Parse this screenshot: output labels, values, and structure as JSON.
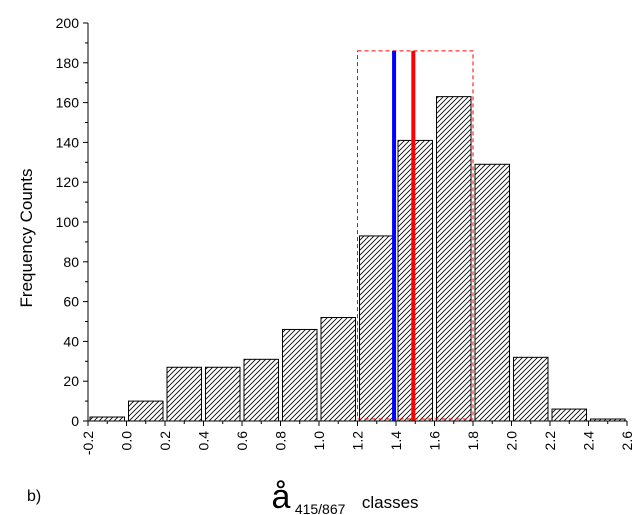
{
  "panel_label": "b)",
  "chart_data": {
    "type": "bar",
    "bin_edges": [
      -0.2,
      0.0,
      0.2,
      0.4,
      0.6,
      0.8,
      1.0,
      1.2,
      1.4,
      1.6,
      1.8,
      2.0,
      2.2,
      2.4,
      2.6
    ],
    "values": [
      2,
      10,
      27,
      27,
      31,
      46,
      52,
      93,
      141,
      163,
      129,
      32,
      6,
      1
    ],
    "x_ticks": [
      "-0.2",
      "0.0",
      "0.2",
      "0.4",
      "0.6",
      "0.8",
      "1.0",
      "1.2",
      "1.4",
      "1.6",
      "1.8",
      "2.0",
      "2.2",
      "2.4",
      "2.6"
    ],
    "y_ticks": [
      "0",
      "20",
      "40",
      "60",
      "80",
      "100",
      "120",
      "140",
      "160",
      "180",
      "200"
    ],
    "xlabel_symbol": "å",
    "xlabel_subscript": "415/867",
    "xlabel_suffix": "classes",
    "ylabel": "Frequency Counts",
    "xlim": [
      -0.2,
      2.6
    ],
    "ylim": [
      0,
      200
    ],
    "grid": false,
    "bar_fill": "diagonal-hatch",
    "vertical_lines": [
      {
        "x": 1.39,
        "color": "#0000ff"
      },
      {
        "x": 1.49,
        "color": "#ff0000"
      }
    ],
    "highlight_box": {
      "x0": 1.2,
      "x1": 1.8,
      "y0": 1,
      "y1": 186,
      "color": "#ff0000",
      "style": "dashed"
    }
  }
}
